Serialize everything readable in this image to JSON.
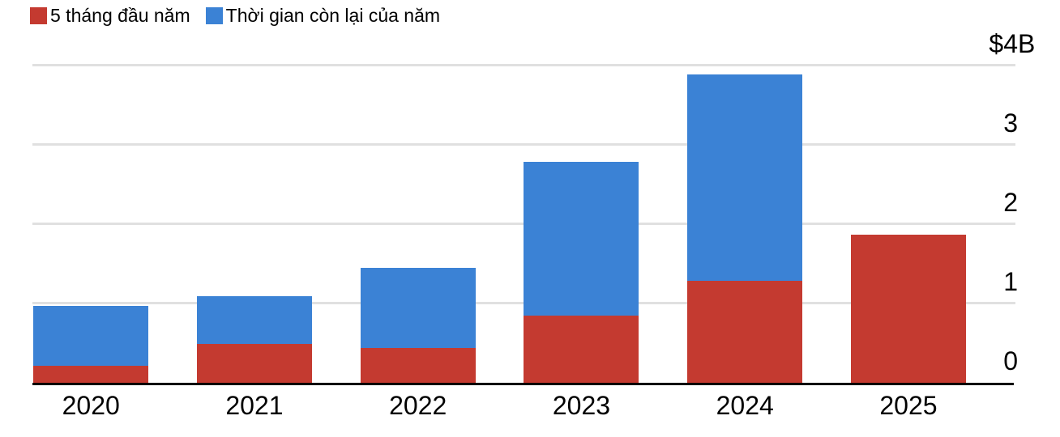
{
  "legend": {
    "items": [
      {
        "label": "5 tháng đầu năm",
        "color": "#c43a30"
      },
      {
        "label": "Thời gian còn lại của năm",
        "color": "#3b82d5"
      }
    ]
  },
  "chart_data": {
    "type": "bar",
    "stacked": true,
    "title": "",
    "categories": [
      "2020",
      "2021",
      "2022",
      "2023",
      "2024",
      "2025"
    ],
    "series": [
      {
        "name": "5 tháng đầu năm",
        "key": "first-5-months",
        "color": "#c43a30",
        "values": [
          0.21,
          0.49,
          0.44,
          0.85,
          1.29,
          1.87
        ]
      },
      {
        "name": "Thời gian còn lại của năm",
        "key": "rest-of-year",
        "color": "#3b82d5",
        "values": [
          0.76,
          0.6,
          1.01,
          1.94,
          2.6,
          0
        ]
      }
    ],
    "unit": "$B",
    "ylim": [
      0,
      4
    ],
    "yticks": [
      {
        "value": 4,
        "label": "$4B"
      },
      {
        "value": 3,
        "label": "3"
      },
      {
        "value": 2,
        "label": "2"
      },
      {
        "value": 1,
        "label": "1"
      },
      {
        "value": 0,
        "label": "0"
      }
    ],
    "grid": true,
    "legend_position": "top-left",
    "ytick_side": "right",
    "xlabel": "",
    "ylabel": ""
  }
}
